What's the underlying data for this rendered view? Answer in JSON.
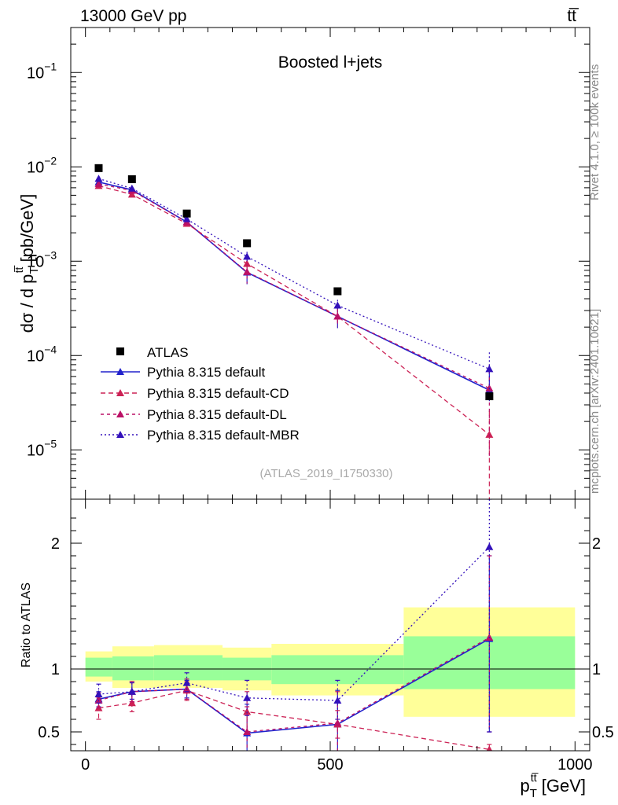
{
  "header": {
    "energy_label": "13000 GeV pp",
    "process_label": "tt̅"
  },
  "side_labels": {
    "rivet": "Rivet 4.1.0, ≥ 100k events",
    "mcplots": "mcplots.cern.ch [arXiv:2401.10621]"
  },
  "chart_data": {
    "type": "line",
    "title": "Boosted l+jets",
    "analysis_id": "(ATLAS_2019_I1750330)",
    "xlabel": "p_T^{t t̅} [GeV]",
    "xlabel_parts": {
      "main": "p",
      "sub": "T",
      "sup": "tt̅",
      "unit": " [GeV]"
    },
    "ylabel": "dσ / d p_T^{t t̅} [pb/GeV]",
    "ylabel_parts": {
      "pre": "dσ / d p",
      "sub": "T",
      "sup": "tt̅",
      "unit": " [pb/GeV]"
    },
    "ratio_ylabel": "Ratio to ATLAS",
    "xlim": [
      -30,
      1030
    ],
    "ylim": [
      3e-06,
      0.3
    ],
    "yscale": "log",
    "ratio_ylim": [
      0.35,
      2.35
    ],
    "x_ticks": [
      0,
      500,
      1000
    ],
    "x_tick_labels": [
      "0",
      "500",
      "1000"
    ],
    "y_ticks": [
      1e-05,
      0.0001,
      0.001,
      0.01,
      0.1
    ],
    "y_tick_labels": [
      {
        "base": "10",
        "exp": "−5"
      },
      {
        "base": "10",
        "exp": "−4"
      },
      {
        "base": "10",
        "exp": "−3"
      },
      {
        "base": "10",
        "exp": "−2"
      },
      {
        "base": "10",
        "exp": "−1"
      }
    ],
    "ratio_ticks": [
      0.5,
      1,
      2
    ],
    "ratio_tick_labels": [
      "0.5",
      "1",
      "2"
    ],
    "legend_position": "left-middle",
    "x": [
      27,
      95,
      207,
      330,
      515,
      825
    ],
    "reference": {
      "name": "ATLAS",
      "values": [
        0.0097,
        0.0074,
        0.0032,
        0.00155,
        0.00048,
        3.7e-05
      ],
      "color": "#000000"
    },
    "bands": {
      "bins": [
        [
          0,
          55
        ],
        [
          55,
          140
        ],
        [
          140,
          280
        ],
        [
          280,
          380
        ],
        [
          380,
          650
        ],
        [
          650,
          1000
        ]
      ],
      "green": [
        [
          0.94,
          1.09
        ],
        [
          0.91,
          1.1
        ],
        [
          0.91,
          1.11
        ],
        [
          0.91,
          1.09
        ],
        [
          0.88,
          1.11
        ],
        [
          0.84,
          1.26
        ]
      ],
      "yellow": [
        [
          0.9,
          1.14
        ],
        [
          0.85,
          1.18
        ],
        [
          0.85,
          1.19
        ],
        [
          0.83,
          1.17
        ],
        [
          0.79,
          1.2
        ],
        [
          0.62,
          1.49
        ]
      ],
      "green_color": "#99ff99",
      "yellow_color": "#ffff99"
    },
    "series": [
      {
        "name": "Pythia 8.315 default",
        "color": "#2222cc",
        "dash": "solid",
        "values": [
          0.0069,
          0.0057,
          0.0026,
          0.00076,
          0.00026,
          4.3e-05
        ],
        "err_lo": [
          0.0064,
          0.0053,
          0.00245,
          0.00057,
          0.000195,
          4.3e-05
        ],
        "err_hi": [
          0.0074,
          0.0061,
          0.00275,
          0.00095,
          0.00031,
          7e-05
        ],
        "ratio": [
          0.76,
          0.82,
          0.84,
          0.49,
          0.56,
          1.24
        ],
        "ratio_lo": [
          0.7,
          0.74,
          0.77,
          0.3,
          0.3,
          0.5
        ],
        "ratio_hi": [
          0.82,
          0.9,
          0.91,
          0.72,
          0.83,
          1.9
        ]
      },
      {
        "name": "Pythia 8.315 default-CD",
        "color": "#cc2255",
        "dash": "6,4",
        "values": [
          0.0063,
          0.0051,
          0.0025,
          0.00094,
          0.00026,
          1.45e-05
        ],
        "err_lo": [
          0.0059,
          0.0048,
          0.00235,
          0.0008,
          0.00021,
          3e-06
        ],
        "err_hi": [
          0.0067,
          0.0054,
          0.00265,
          0.0011,
          0.00031,
          2.6e-05
        ],
        "ratio": [
          0.69,
          0.73,
          0.83,
          0.66,
          0.56,
          0.36
        ],
        "ratio_lo": [
          0.6,
          0.66,
          0.75,
          0.5,
          0.45,
          0.3
        ],
        "ratio_hi": [
          0.77,
          0.8,
          0.9,
          0.82,
          0.67,
          0.4
        ]
      },
      {
        "name": "Pythia 8.315 default-DL",
        "color": "#bb1166",
        "dash": "4,4",
        "values": [
          0.0066,
          0.0056,
          0.0026,
          0.00077,
          0.00026,
          4.5e-05
        ],
        "err_lo": [
          0.0062,
          0.0052,
          0.00245,
          0.00058,
          0.0002,
          8e-06
        ],
        "err_hi": [
          0.007,
          0.006,
          0.00275,
          0.00096,
          0.00032,
          8e-05
        ],
        "ratio": [
          0.75,
          0.82,
          0.84,
          0.5,
          0.57,
          1.25
        ],
        "ratio_lo": [
          0.69,
          0.74,
          0.76,
          0.3,
          0.3,
          0.5
        ],
        "ratio_hi": [
          0.81,
          0.9,
          0.92,
          0.7,
          0.82,
          1.9
        ]
      },
      {
        "name": "Pythia 8.315 default-MBR",
        "color": "#3311bb",
        "dash": "2,3",
        "values": [
          0.0075,
          0.0059,
          0.0028,
          0.00112,
          0.00034,
          7.2e-05
        ],
        "err_lo": [
          0.0071,
          0.0055,
          0.00265,
          0.00098,
          0.00029,
          3.2e-05
        ],
        "err_hi": [
          0.0079,
          0.0063,
          0.00295,
          0.00126,
          0.00039,
          0.000108
        ],
        "ratio": [
          0.8,
          0.82,
          0.89,
          0.77,
          0.75,
          1.97
        ],
        "ratio_lo": [
          0.73,
          0.76,
          0.82,
          0.63,
          0.6,
          0.5
        ],
        "ratio_hi": [
          0.88,
          0.89,
          0.97,
          0.91,
          0.91,
          2.35
        ]
      }
    ]
  }
}
